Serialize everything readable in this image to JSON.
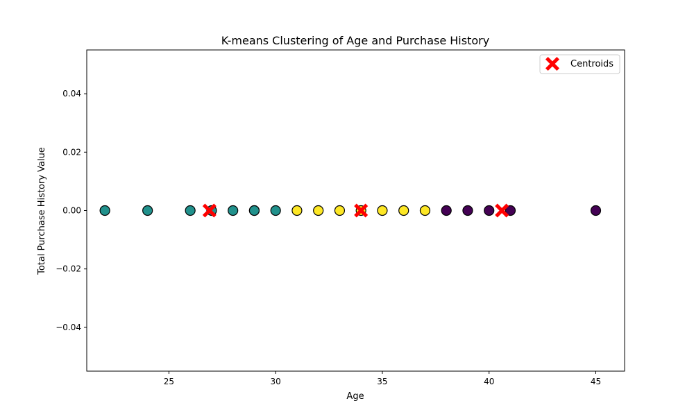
{
  "chart_data": {
    "type": "scatter",
    "title": "K-means Clustering of Age and Purchase History",
    "xlabel": "Age",
    "ylabel": "Total Purchase History Value",
    "xlim": [
      21.15,
      46.35
    ],
    "ylim": [
      -0.055,
      0.055
    ],
    "x_ticks": [
      25,
      30,
      35,
      40,
      45
    ],
    "y_ticks": [
      0.04,
      0.02,
      0.0,
      -0.02,
      -0.04
    ],
    "x_tick_labels": [
      "25",
      "30",
      "35",
      "40",
      "45"
    ],
    "y_tick_labels": [
      "0.04",
      "0.02",
      "0.00",
      "−0.02",
      "−0.04"
    ],
    "grid": false,
    "legend": {
      "position": "top-right",
      "entries": [
        {
          "label": "Centroids",
          "marker": "X",
          "color": "#ff0000"
        }
      ]
    },
    "cluster_colors": [
      "#440154",
      "#21918c",
      "#fde725"
    ],
    "points": [
      {
        "x": 22,
        "y": 0,
        "cluster": 1
      },
      {
        "x": 24,
        "y": 0,
        "cluster": 1
      },
      {
        "x": 26,
        "y": 0,
        "cluster": 1
      },
      {
        "x": 27,
        "y": 0,
        "cluster": 1
      },
      {
        "x": 28,
        "y": 0,
        "cluster": 1
      },
      {
        "x": 29,
        "y": 0,
        "cluster": 1
      },
      {
        "x": 29,
        "y": 0,
        "cluster": 1
      },
      {
        "x": 30,
        "y": 0,
        "cluster": 1
      },
      {
        "x": 31,
        "y": 0,
        "cluster": 2
      },
      {
        "x": 32,
        "y": 0,
        "cluster": 2
      },
      {
        "x": 33,
        "y": 0,
        "cluster": 2
      },
      {
        "x": 34,
        "y": 0,
        "cluster": 2
      },
      {
        "x": 35,
        "y": 0,
        "cluster": 2
      },
      {
        "x": 36,
        "y": 0,
        "cluster": 2
      },
      {
        "x": 37,
        "y": 0,
        "cluster": 2
      },
      {
        "x": 38,
        "y": 0,
        "cluster": 0
      },
      {
        "x": 39,
        "y": 0,
        "cluster": 0
      },
      {
        "x": 40,
        "y": 0,
        "cluster": 0
      },
      {
        "x": 41,
        "y": 0,
        "cluster": 0
      },
      {
        "x": 45,
        "y": 0,
        "cluster": 0
      }
    ],
    "centroids": [
      {
        "x": 26.9,
        "y": 0
      },
      {
        "x": 34.0,
        "y": 0
      },
      {
        "x": 40.6,
        "y": 0
      }
    ]
  }
}
